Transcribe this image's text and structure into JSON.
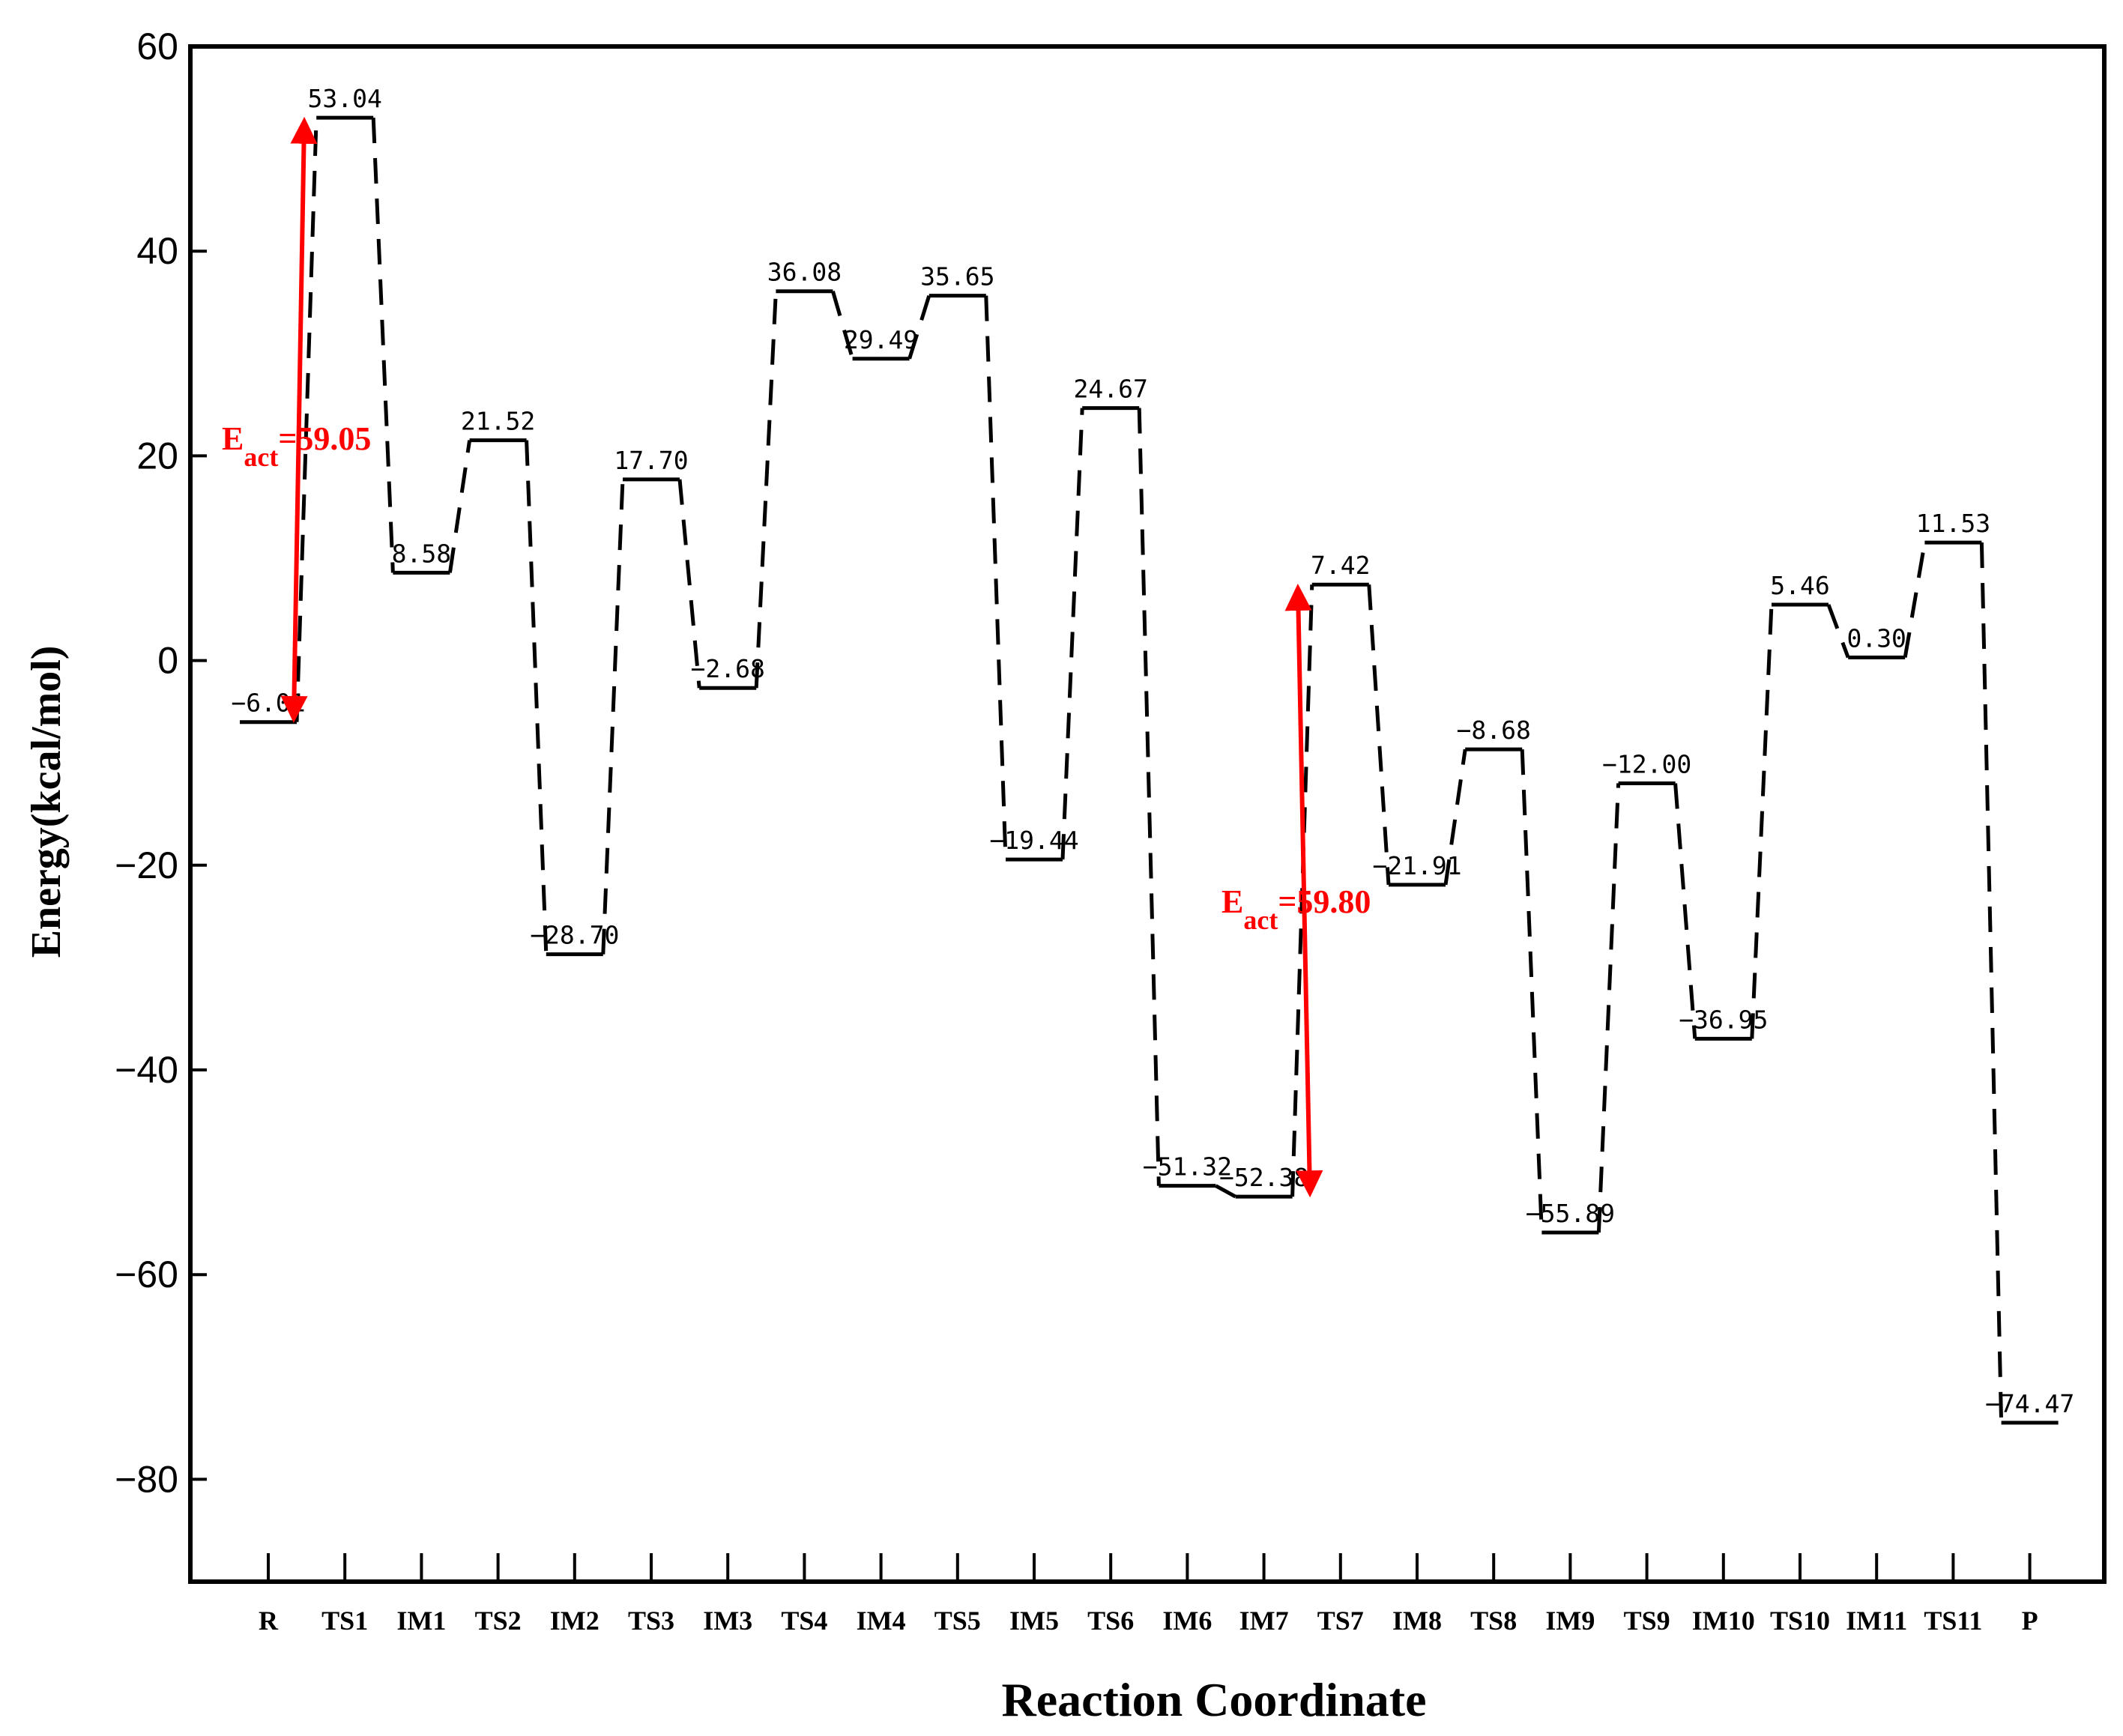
{
  "chart_data": {
    "type": "energy-profile",
    "title": "",
    "xlabel": "Reaction Coordinate",
    "ylabel": "Energy(kcal/mol)",
    "ylim": [
      -90,
      60
    ],
    "yticks": [
      60,
      40,
      20,
      0,
      -20,
      -40,
      -60,
      -80
    ],
    "ytick_labels": [
      "60",
      "40",
      "20",
      "0",
      "−20",
      "−40",
      "−60",
      "−80"
    ],
    "categories": [
      "R",
      "TS1",
      "IM1",
      "TS2",
      "IM2",
      "TS3",
      "IM3",
      "TS4",
      "IM4",
      "TS5",
      "IM5",
      "TS6",
      "IM6",
      "IM7",
      "TS7",
      "IM8",
      "TS8",
      "IM9",
      "TS9",
      "IM10",
      "TS10",
      "IM11",
      "TS11",
      "P"
    ],
    "values": [
      -6.01,
      53.04,
      8.58,
      21.52,
      -28.7,
      17.7,
      -2.68,
      36.08,
      29.49,
      35.65,
      -19.44,
      24.67,
      -51.32,
      -52.38,
      7.42,
      -21.91,
      -8.68,
      -55.89,
      -12.0,
      -36.95,
      5.46,
      0.3,
      11.53,
      -74.47
    ],
    "value_labels": [
      "−6.01",
      "53.04",
      "8.58",
      "21.52",
      "−28.70",
      "17.70",
      "−2.68",
      "36.08",
      "29.49",
      "35.65",
      "−19.44",
      "24.67",
      "−51.32",
      "−52.38",
      "7.42",
      "−21.91",
      "−8.68",
      "−55.89",
      "−12.00",
      "−36.95",
      "5.46",
      "0.30",
      "11.53",
      "−74.47"
    ],
    "annotations": [
      {
        "symbol": "E",
        "subscript": "act",
        "text": "=59.05",
        "from": -6.01,
        "to": 53.04,
        "color": "#ff0000"
      },
      {
        "symbol": "E",
        "subscript": "act",
        "text": "=59.80",
        "from": -52.38,
        "to": 7.42,
        "color": "#ff0000"
      }
    ]
  }
}
